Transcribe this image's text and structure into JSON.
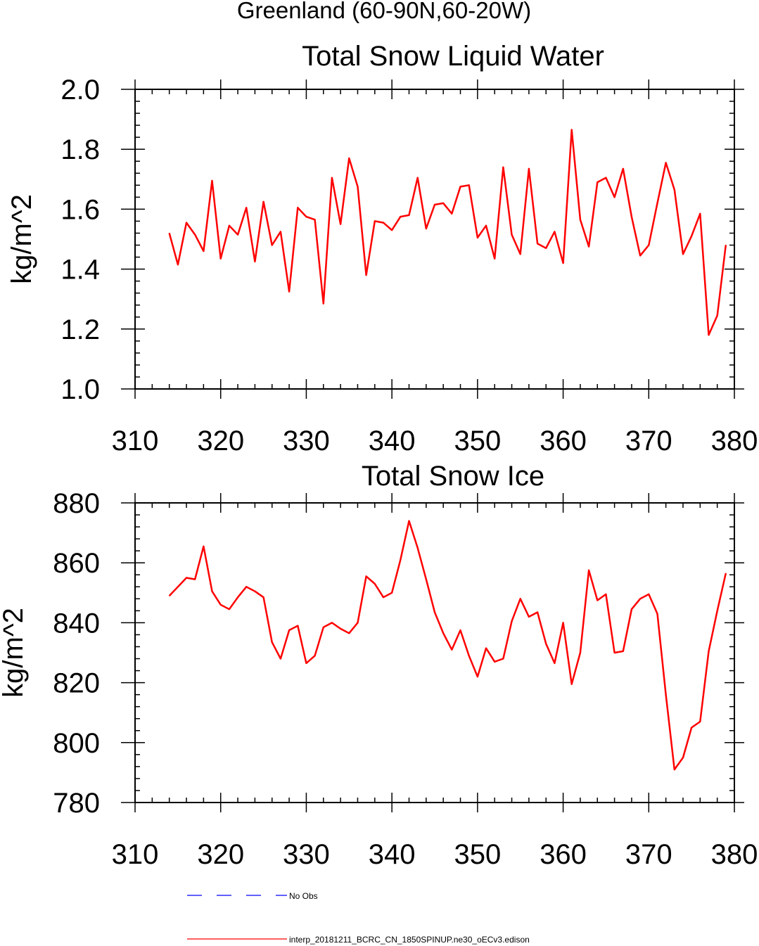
{
  "page_title": "Greenland (60-90N,60-20W)",
  "colors": {
    "model_line": "#ff0000",
    "obs_line": "#0000ff",
    "axes": "#000000"
  },
  "legend": {
    "obs_label": "No Obs",
    "model_label": "interp_20181211_BCRC_CN_1850SPINUP.ne30_oECv3.edison"
  },
  "chart_data": [
    {
      "type": "line",
      "title": "Total Snow Liquid Water",
      "ylabel": "kg/m^2",
      "xlabel": "",
      "xlim": [
        310,
        380
      ],
      "ylim": [
        1.0,
        2.0
      ],
      "xticks": [
        "310",
        "320",
        "330",
        "340",
        "350",
        "360",
        "370",
        "380"
      ],
      "yticks": [
        "1.0",
        "1.2",
        "1.4",
        "1.6",
        "1.8",
        "2.0"
      ],
      "series": [
        {
          "name": "interp_20181211_BCRC_CN_1850SPINUP.ne30_oECv3.edison",
          "x": [
            314,
            315,
            316,
            317,
            318,
            319,
            320,
            321,
            322,
            323,
            324,
            325,
            326,
            327,
            328,
            329,
            330,
            331,
            332,
            333,
            334,
            335,
            336,
            337,
            338,
            339,
            340,
            341,
            342,
            343,
            344,
            345,
            346,
            347,
            348,
            349,
            350,
            351,
            352,
            353,
            354,
            355,
            356,
            357,
            358,
            359,
            360,
            361,
            362,
            363,
            364,
            365,
            366,
            367,
            368,
            369,
            370,
            371,
            372,
            373,
            374,
            375,
            376,
            377,
            378,
            379
          ],
          "values": [
            1.52,
            1.415,
            1.555,
            1.515,
            1.46,
            1.695,
            1.435,
            1.545,
            1.515,
            1.605,
            1.425,
            1.625,
            1.48,
            1.525,
            1.325,
            1.605,
            1.575,
            1.565,
            1.285,
            1.705,
            1.55,
            1.77,
            1.675,
            1.38,
            1.56,
            1.555,
            1.53,
            1.575,
            1.58,
            1.705,
            1.535,
            1.615,
            1.62,
            1.585,
            1.675,
            1.68,
            1.505,
            1.545,
            1.435,
            1.74,
            1.515,
            1.45,
            1.735,
            1.485,
            1.47,
            1.525,
            1.42,
            1.865,
            1.565,
            1.475,
            1.69,
            1.705,
            1.64,
            1.735,
            1.575,
            1.445,
            1.48,
            1.62,
            1.755,
            1.665,
            1.45,
            1.51,
            1.585,
            1.18,
            1.245,
            1.48
          ]
        }
      ]
    },
    {
      "type": "line",
      "title": "Total Snow Ice",
      "ylabel": "kg/m^2",
      "xlabel": "",
      "xlim": [
        310,
        380
      ],
      "ylim": [
        780,
        880
      ],
      "xticks": [
        "310",
        "320",
        "330",
        "340",
        "350",
        "360",
        "370",
        "380"
      ],
      "yticks": [
        "780",
        "800",
        "820",
        "840",
        "860",
        "880"
      ],
      "series": [
        {
          "name": "interp_20181211_BCRC_CN_1850SPINUP.ne30_oECv3.edison",
          "x": [
            314,
            315,
            316,
            317,
            318,
            319,
            320,
            321,
            322,
            323,
            324,
            325,
            326,
            327,
            328,
            329,
            330,
            331,
            332,
            333,
            334,
            335,
            336,
            337,
            338,
            339,
            340,
            341,
            342,
            343,
            344,
            345,
            346,
            347,
            348,
            349,
            350,
            351,
            352,
            353,
            354,
            355,
            356,
            357,
            358,
            359,
            360,
            361,
            362,
            363,
            364,
            365,
            366,
            367,
            368,
            369,
            370,
            371,
            372,
            373,
            374,
            375,
            376,
            377,
            378,
            379
          ],
          "values": [
            849,
            852,
            855,
            854.5,
            865.5,
            850.5,
            846,
            844.5,
            848.5,
            852,
            850.5,
            848.5,
            833.5,
            828,
            837.5,
            839,
            826.5,
            829,
            838.5,
            840,
            838,
            836.5,
            840,
            855.5,
            853,
            848.5,
            850,
            861,
            874,
            865,
            854.5,
            843.5,
            836.5,
            831,
            837.5,
            829,
            822,
            831.5,
            827,
            828,
            840.5,
            848,
            842,
            843.5,
            833,
            826.5,
            840,
            819.5,
            830,
            857.5,
            847.5,
            849.5,
            830,
            830.5,
            844.5,
            848,
            849.5,
            843,
            816,
            791,
            795,
            805,
            807,
            830.5,
            844,
            856.5
          ]
        }
      ]
    }
  ]
}
